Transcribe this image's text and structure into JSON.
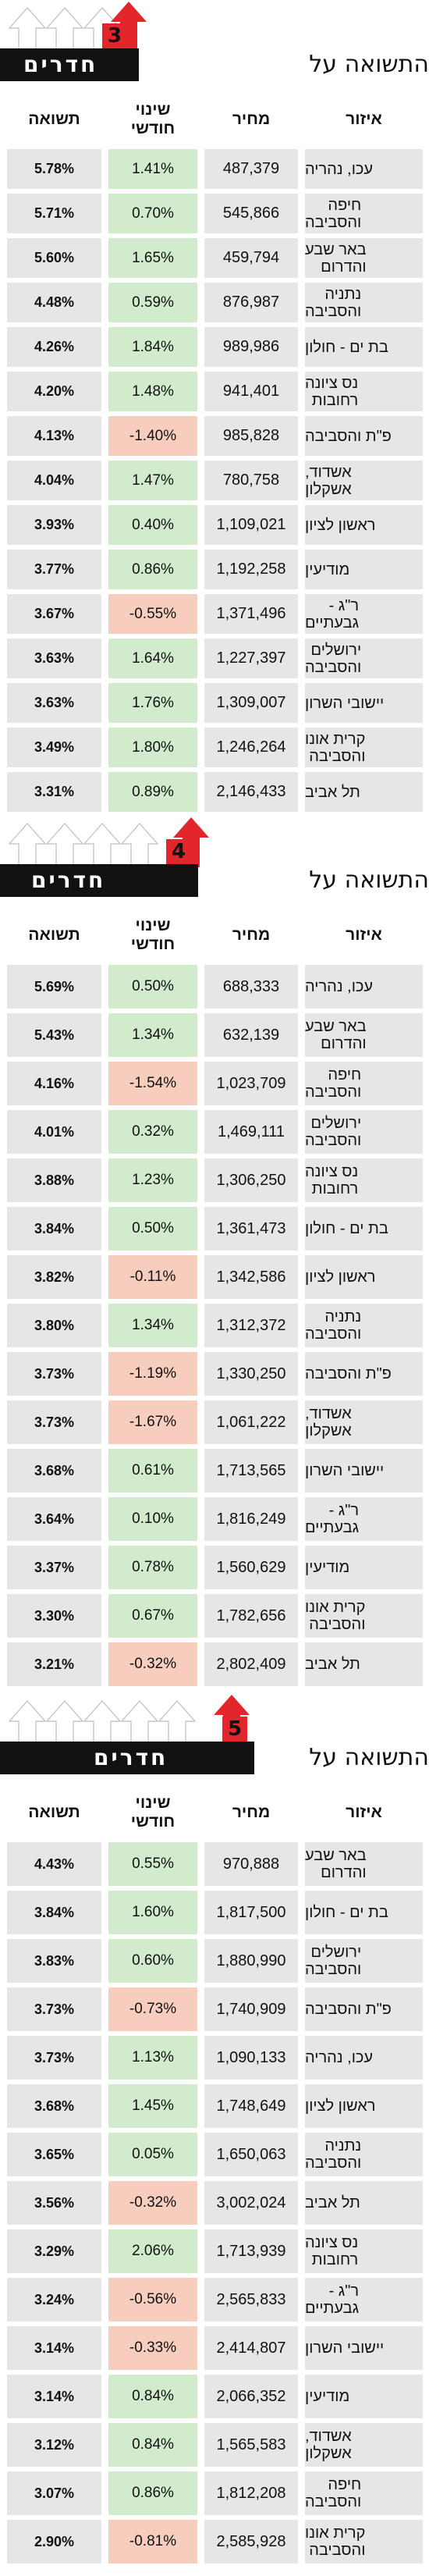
{
  "colors": {
    "yield_bg": "#e6e6e6",
    "price_bg": "#e6e6e6",
    "area_bg": "#e6e6e6",
    "positive_change_bg": "#d2ebcd",
    "negative_change_bg": "#f7cdbe",
    "title_bar": "#111111",
    "badge": "#e3262c"
  },
  "chart_data": [
    {
      "type": "table",
      "rooms_number": "3",
      "title_prefix": "התשואה על",
      "title_rooms": "חדרים",
      "columns": {
        "area": "איזור",
        "price": "מחיר",
        "change": "שינוי\nחודשי",
        "yield": "תשואה"
      },
      "rows": [
        {
          "area": "עכו, נהריה",
          "price": "487,379",
          "change": "1.41%",
          "yield": "5.78%"
        },
        {
          "area": "חיפה\nוהסביבה",
          "price": "545,866",
          "change": "0.70%",
          "yield": "5.71%"
        },
        {
          "area": "באר שבע\nוהדרום",
          "price": "459,794",
          "change": "1.65%",
          "yield": "5.60%"
        },
        {
          "area": "נתניה\nוהסביבה",
          "price": "876,987",
          "change": "0.59%",
          "yield": "4.48%"
        },
        {
          "area": "בת ים - חולון",
          "price": "989,986",
          "change": "1.84%",
          "yield": "4.26%"
        },
        {
          "area": "נס ציונה\nרחובות",
          "price": "941,401",
          "change": "1.48%",
          "yield": "4.20%"
        },
        {
          "area": "פ\"ת והסביבה",
          "price": "985,828",
          "change": "-1.40%",
          "yield": "4.13%"
        },
        {
          "area": "אשדוד,\nאשקלון",
          "price": "780,758",
          "change": "1.47%",
          "yield": "4.04%"
        },
        {
          "area": "ראשון לציון",
          "price": "1,109,021",
          "change": "0.40%",
          "yield": "3.93%"
        },
        {
          "area": "מודיעין",
          "price": "1,192,258",
          "change": "0.86%",
          "yield": "3.77%"
        },
        {
          "area": "ר\"ג -\nגבעתיים",
          "price": "1,371,496",
          "change": "-0.55%",
          "yield": "3.67%"
        },
        {
          "area": "ירושלים\nוהסביבה",
          "price": "1,227,397",
          "change": "1.64%",
          "yield": "3.63%"
        },
        {
          "area": "יישובי השרון",
          "price": "1,309,007",
          "change": "1.76%",
          "yield": "3.63%"
        },
        {
          "area": "קרית אונו\nוהסביבה",
          "price": "1,246,264",
          "change": "1.80%",
          "yield": "3.49%"
        },
        {
          "area": "תל אביב",
          "price": "2,146,433",
          "change": "0.89%",
          "yield": "3.31%"
        }
      ]
    },
    {
      "type": "table",
      "rooms_number": "4",
      "title_prefix": "התשואה על",
      "title_rooms": "חדרים",
      "columns": {
        "area": "איזור",
        "price": "מחיר",
        "change": "שינוי\nחודשי",
        "yield": "תשואה"
      },
      "rows": [
        {
          "area": "עכו, נהריה",
          "price": "688,333",
          "change": "0.50%",
          "yield": "5.69%"
        },
        {
          "area": "באר שבע\nוהדרום",
          "price": "632,139",
          "change": "1.34%",
          "yield": "5.43%"
        },
        {
          "area": "חיפה\nוהסביבה",
          "price": "1,023,709",
          "change": "-1.54%",
          "yield": "4.16%"
        },
        {
          "area": "ירושלים\nוהסביבה",
          "price": "1,469,111",
          "change": "0.32%",
          "yield": "4.01%"
        },
        {
          "area": "נס ציונה\nרחובות",
          "price": "1,306,250",
          "change": "1.23%",
          "yield": "3.88%"
        },
        {
          "area": "בת ים - חולון",
          "price": "1,361,473",
          "change": "0.50%",
          "yield": "3.84%"
        },
        {
          "area": "ראשון לציון",
          "price": "1,342,586",
          "change": "-0.11%",
          "yield": "3.82%"
        },
        {
          "area": "נתניה\nוהסביבה",
          "price": "1,312,372",
          "change": "1.34%",
          "yield": "3.80%"
        },
        {
          "area": "פ\"ת והסביבה",
          "price": "1,330,250",
          "change": "-1.19%",
          "yield": "3.73%"
        },
        {
          "area": "אשדוד,\nאשקלון",
          "price": "1,061,222",
          "change": "-1.67%",
          "yield": "3.73%"
        },
        {
          "area": "יישובי השרון",
          "price": "1,713,565",
          "change": "0.61%",
          "yield": "3.68%"
        },
        {
          "area": "ר\"ג -\nגבעתיים",
          "price": "1,816,249",
          "change": "0.10%",
          "yield": "3.64%"
        },
        {
          "area": "מודיעין",
          "price": "1,560,629",
          "change": "0.78%",
          "yield": "3.37%"
        },
        {
          "area": "קרית אונו\nוהסביבה",
          "price": "1,782,656",
          "change": "0.67%",
          "yield": "3.30%"
        },
        {
          "area": "תל אביב",
          "price": "2,802,409",
          "change": "-0.32%",
          "yield": "3.21%"
        }
      ]
    },
    {
      "type": "table",
      "rooms_number": "5",
      "title_prefix": "התשואה על",
      "title_rooms": "חדרים",
      "columns": {
        "area": "איזור",
        "price": "מחיר",
        "change": "שינוי\nחודשי",
        "yield": "תשואה"
      },
      "rows": [
        {
          "area": "באר שבע\nוהדרום",
          "price": "970,888",
          "change": "0.55%",
          "yield": "4.43%"
        },
        {
          "area": "בת ים - חולון",
          "price": "1,817,500",
          "change": "1.60%",
          "yield": "3.84%"
        },
        {
          "area": "ירושלים\nוהסביבה",
          "price": "1,880,990",
          "change": "0.60%",
          "yield": "3.83%"
        },
        {
          "area": "פ\"ת והסביבה",
          "price": "1,740,909",
          "change": "-0.73%",
          "yield": "3.73%"
        },
        {
          "area": "עכו, נהריה",
          "price": "1,090,133",
          "change": "1.13%",
          "yield": "3.73%"
        },
        {
          "area": "ראשון לציון",
          "price": "1,748,649",
          "change": "1.45%",
          "yield": "3.68%"
        },
        {
          "area": "נתניה\nוהסביבה",
          "price": "1,650,063",
          "change": "0.05%",
          "yield": "3.65%"
        },
        {
          "area": "תל אביב",
          "price": "3,002,024",
          "change": "-0.32%",
          "yield": "3.56%"
        },
        {
          "area": "נס ציונה\nרחובות",
          "price": "1,713,939",
          "change": "2.06%",
          "yield": "3.29%"
        },
        {
          "area": "ר\"ג -\nגבעתיים",
          "price": "2,565,833",
          "change": "-0.56%",
          "yield": "3.24%"
        },
        {
          "area": "יישובי השרון",
          "price": "2,414,807",
          "change": "-0.33%",
          "yield": "3.14%"
        },
        {
          "area": "מודיעין",
          "price": "2,066,352",
          "change": "0.84%",
          "yield": "3.14%"
        },
        {
          "area": "אשדוד,\nאשקלון",
          "price": "1,565,583",
          "change": "0.84%",
          "yield": "3.12%"
        },
        {
          "area": "חיפה\nוהסביבה",
          "price": "1,812,208",
          "change": "0.86%",
          "yield": "3.07%"
        },
        {
          "area": "קרית אונו\nוהסביבה",
          "price": "2,585,928",
          "change": "-0.81%",
          "yield": "2.90%"
        }
      ]
    }
  ]
}
